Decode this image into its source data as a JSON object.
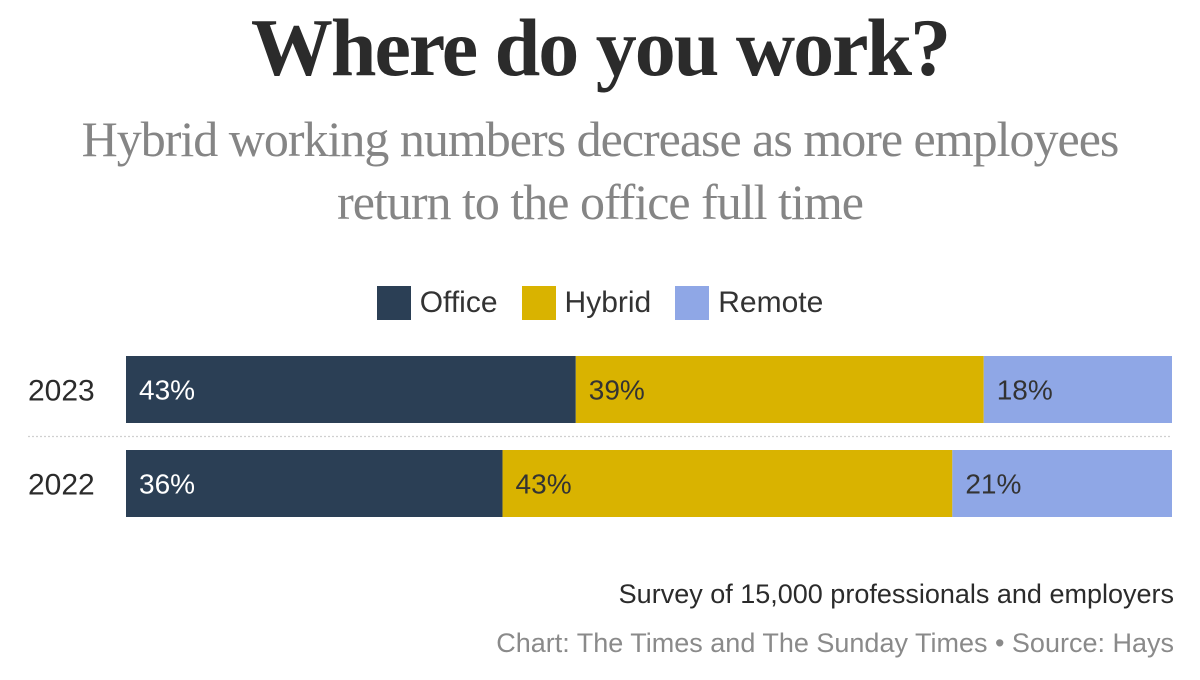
{
  "title": "Where do you work?",
  "subtitle": "Hybrid working numbers decrease as more employees return to the office full time",
  "legend": [
    {
      "label": "Office",
      "color": "#2b3f55"
    },
    {
      "label": "Hybrid",
      "color": "#d9b300"
    },
    {
      "label": "Remote",
      "color": "#8fa7e6"
    }
  ],
  "chart_data": {
    "type": "bar",
    "orientation": "horizontal",
    "stacked": true,
    "categories": [
      "2023",
      "2022"
    ],
    "series": [
      {
        "name": "Office",
        "values": [
          43,
          36
        ],
        "labels": [
          "43%",
          "36%"
        ],
        "color": "#2b3f55",
        "label_color": "#ffffff"
      },
      {
        "name": "Hybrid",
        "values": [
          39,
          43
        ],
        "labels": [
          "39%",
          "43%"
        ],
        "color": "#d9b300",
        "label_color": "#333333"
      },
      {
        "name": "Remote",
        "values": [
          18,
          21
        ],
        "labels": [
          "18%",
          "21%"
        ],
        "color": "#8fa7e6",
        "label_color": "#333333"
      }
    ],
    "xlim": [
      0,
      100
    ],
    "legend_position": "top-center"
  },
  "footer": {
    "note": "Survey of 15,000 professionals and employers",
    "credit": "Chart: The Times and The Sunday Times • Source: Hays"
  }
}
